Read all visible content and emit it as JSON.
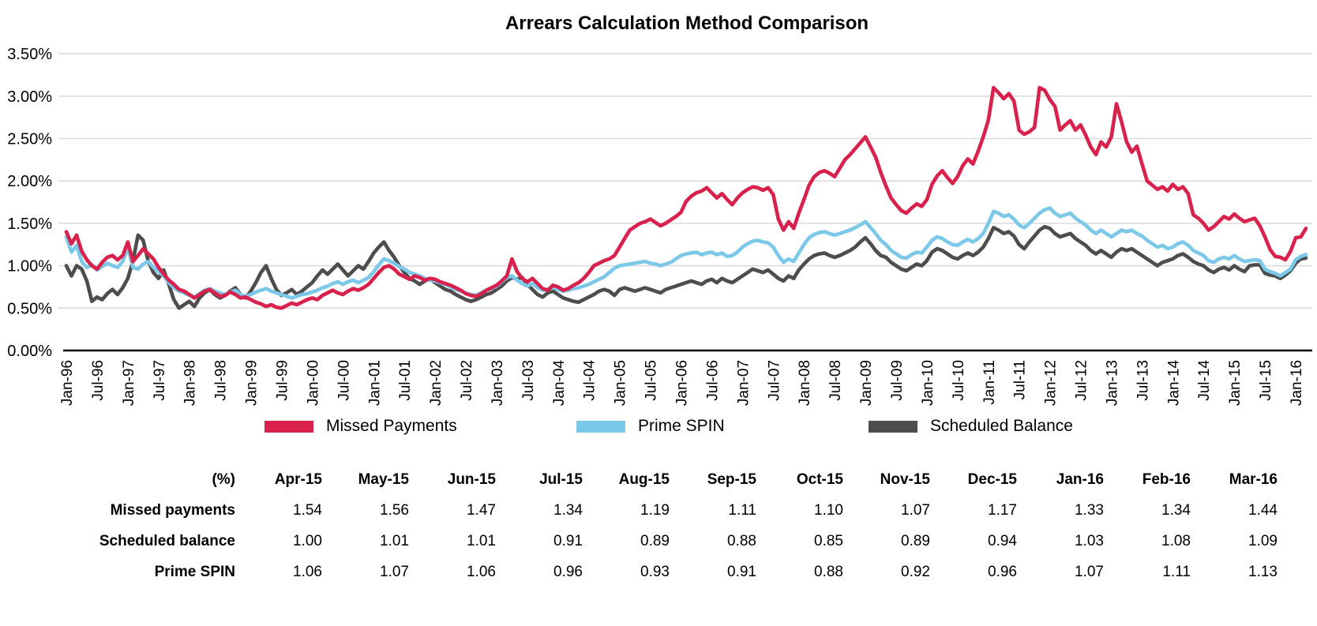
{
  "title": "Arrears Calculation Method Comparison",
  "colors": {
    "missed_payments": "#D8214C",
    "prime_spin": "#7CC8E9",
    "scheduled_balance": "#4D4D4D",
    "gridline": "#D9D9D9",
    "axis_line": "#000000"
  },
  "chart_data": {
    "type": "line",
    "title": "Arrears Calculation Method Comparison",
    "x_start": "Jan-96",
    "x_end": "Mar-16",
    "frequency": "monthly",
    "grid": "horizontal",
    "legend_position": "bottom",
    "ylim": [
      0,
      3.5
    ],
    "y_tick_labels": [
      "0.00%",
      "0.50%",
      "1.00%",
      "1.50%",
      "2.00%",
      "2.50%",
      "3.00%",
      "3.50%"
    ],
    "y_tick_values": [
      0,
      0.5,
      1.0,
      1.5,
      2.0,
      2.5,
      3.0,
      3.5
    ],
    "x_tick_labels": [
      "Jan-96",
      "Jul-96",
      "Jan-97",
      "Jul-97",
      "Jan-98",
      "Jul-98",
      "Jan-99",
      "Jul-99",
      "Jan-00",
      "Jul-00",
      "Jan-01",
      "Jul-01",
      "Jan-02",
      "Jul-02",
      "Jan-03",
      "Jul-03",
      "Jan-04",
      "Jul-04",
      "Jan-05",
      "Jul-05",
      "Jan-06",
      "Jul-06",
      "Jan-07",
      "Jul-07",
      "Jan-08",
      "Jul-08",
      "Jan-09",
      "Jul-09",
      "Jan-10",
      "Jul-10",
      "Jan-11",
      "Jul-11",
      "Jan-12",
      "Jul-12",
      "Jan-13",
      "Jul-13",
      "Jan-14",
      "Jul-14",
      "Jan-15",
      "Jul-15",
      "Jan-16"
    ],
    "x_tick_month_indices": [
      0,
      6,
      12,
      18,
      24,
      30,
      36,
      42,
      48,
      54,
      60,
      66,
      72,
      78,
      84,
      90,
      96,
      102,
      108,
      114,
      120,
      126,
      132,
      138,
      144,
      150,
      156,
      162,
      168,
      174,
      180,
      186,
      192,
      198,
      204,
      210,
      216,
      222,
      228,
      234,
      240
    ],
    "series": [
      {
        "name": "Missed Payments",
        "color": "#D8214C",
        "values": [
          1.4,
          1.26,
          1.36,
          1.17,
          1.07,
          1.0,
          0.96,
          1.04,
          1.1,
          1.12,
          1.07,
          1.12,
          1.28,
          1.05,
          1.12,
          1.2,
          1.14,
          1.08,
          0.98,
          0.9,
          0.83,
          0.78,
          0.72,
          0.7,
          0.66,
          0.62,
          0.66,
          0.7,
          0.72,
          0.68,
          0.64,
          0.65,
          0.69,
          0.66,
          0.62,
          0.63,
          0.6,
          0.57,
          0.55,
          0.52,
          0.54,
          0.51,
          0.5,
          0.53,
          0.56,
          0.54,
          0.57,
          0.6,
          0.62,
          0.6,
          0.65,
          0.68,
          0.71,
          0.68,
          0.66,
          0.7,
          0.73,
          0.71,
          0.74,
          0.78,
          0.85,
          0.92,
          0.98,
          1.0,
          0.96,
          0.9,
          0.87,
          0.84,
          0.88,
          0.86,
          0.83,
          0.85,
          0.84,
          0.81,
          0.79,
          0.77,
          0.74,
          0.71,
          0.67,
          0.65,
          0.64,
          0.67,
          0.71,
          0.74,
          0.77,
          0.82,
          0.88,
          1.08,
          0.93,
          0.85,
          0.81,
          0.85,
          0.79,
          0.73,
          0.71,
          0.77,
          0.75,
          0.71,
          0.73,
          0.77,
          0.8,
          0.85,
          0.92,
          1.0,
          1.03,
          1.06,
          1.08,
          1.12,
          1.22,
          1.32,
          1.42,
          1.46,
          1.5,
          1.52,
          1.55,
          1.51,
          1.47,
          1.5,
          1.54,
          1.58,
          1.63,
          1.76,
          1.82,
          1.86,
          1.88,
          1.92,
          1.86,
          1.8,
          1.85,
          1.78,
          1.72,
          1.8,
          1.86,
          1.9,
          1.93,
          1.92,
          1.89,
          1.92,
          1.84,
          1.55,
          1.42,
          1.52,
          1.44,
          1.62,
          1.78,
          1.95,
          2.05,
          2.1,
          2.12,
          2.09,
          2.05,
          2.15,
          2.25,
          2.31,
          2.38,
          2.45,
          2.52,
          2.4,
          2.28,
          2.1,
          1.94,
          1.8,
          1.72,
          1.65,
          1.62,
          1.68,
          1.73,
          1.7,
          1.78,
          1.96,
          2.06,
          2.12,
          2.04,
          1.97,
          2.05,
          2.18,
          2.26,
          2.2,
          2.35,
          2.52,
          2.72,
          3.1,
          3.04,
          2.97,
          3.03,
          2.94,
          2.6,
          2.55,
          2.58,
          2.63,
          3.1,
          3.07,
          2.96,
          2.88,
          2.6,
          2.66,
          2.71,
          2.6,
          2.66,
          2.54,
          2.4,
          2.31,
          2.46,
          2.4,
          2.52,
          2.91,
          2.7,
          2.46,
          2.34,
          2.41,
          2.2,
          2.0,
          1.95,
          1.9,
          1.93,
          1.88,
          1.96,
          1.9,
          1.93,
          1.85,
          1.6,
          1.56,
          1.5,
          1.42,
          1.46,
          1.52,
          1.58,
          1.55,
          1.61,
          1.56,
          1.52,
          1.54,
          1.56,
          1.47,
          1.34,
          1.19,
          1.11,
          1.1,
          1.07,
          1.17,
          1.33,
          1.34,
          1.44
        ]
      },
      {
        "name": "Prime SPIN",
        "color": "#7CC8E9",
        "values": [
          1.34,
          1.16,
          1.24,
          1.05,
          0.98,
          1.01,
          0.95,
          0.99,
          1.03,
          1.0,
          0.98,
          1.05,
          1.22,
          0.98,
          0.96,
          1.02,
          1.05,
          0.98,
          0.93,
          0.88,
          0.8,
          0.74,
          0.7,
          0.68,
          0.65,
          0.63,
          0.67,
          0.71,
          0.73,
          0.7,
          0.68,
          0.66,
          0.69,
          0.71,
          0.66,
          0.64,
          0.66,
          0.69,
          0.71,
          0.73,
          0.7,
          0.68,
          0.66,
          0.64,
          0.62,
          0.64,
          0.66,
          0.67,
          0.69,
          0.71,
          0.74,
          0.76,
          0.79,
          0.81,
          0.78,
          0.81,
          0.83,
          0.8,
          0.83,
          0.86,
          0.93,
          1.01,
          1.08,
          1.06,
          1.03,
          0.99,
          0.96,
          0.92,
          0.9,
          0.88,
          0.85,
          0.83,
          0.82,
          0.8,
          0.78,
          0.75,
          0.72,
          0.7,
          0.68,
          0.66,
          0.65,
          0.68,
          0.71,
          0.73,
          0.76,
          0.81,
          0.86,
          0.88,
          0.83,
          0.79,
          0.76,
          0.79,
          0.74,
          0.71,
          0.72,
          0.74,
          0.72,
          0.7,
          0.71,
          0.73,
          0.74,
          0.76,
          0.78,
          0.81,
          0.84,
          0.87,
          0.92,
          0.97,
          1.0,
          1.01,
          1.02,
          1.03,
          1.04,
          1.05,
          1.03,
          1.02,
          1.0,
          1.02,
          1.04,
          1.08,
          1.12,
          1.14,
          1.15,
          1.16,
          1.13,
          1.15,
          1.16,
          1.13,
          1.15,
          1.11,
          1.12,
          1.16,
          1.22,
          1.26,
          1.29,
          1.3,
          1.28,
          1.27,
          1.22,
          1.12,
          1.04,
          1.08,
          1.05,
          1.15,
          1.25,
          1.33,
          1.37,
          1.39,
          1.4,
          1.38,
          1.36,
          1.38,
          1.4,
          1.42,
          1.45,
          1.48,
          1.52,
          1.45,
          1.38,
          1.3,
          1.25,
          1.18,
          1.14,
          1.1,
          1.09,
          1.13,
          1.16,
          1.15,
          1.22,
          1.3,
          1.34,
          1.32,
          1.28,
          1.25,
          1.24,
          1.28,
          1.31,
          1.28,
          1.32,
          1.38,
          1.5,
          1.64,
          1.62,
          1.58,
          1.6,
          1.55,
          1.48,
          1.45,
          1.5,
          1.56,
          1.62,
          1.66,
          1.68,
          1.62,
          1.58,
          1.6,
          1.62,
          1.56,
          1.52,
          1.48,
          1.42,
          1.38,
          1.42,
          1.38,
          1.34,
          1.38,
          1.42,
          1.4,
          1.42,
          1.38,
          1.35,
          1.3,
          1.26,
          1.22,
          1.24,
          1.2,
          1.22,
          1.26,
          1.28,
          1.24,
          1.18,
          1.15,
          1.12,
          1.06,
          1.04,
          1.08,
          1.1,
          1.08,
          1.12,
          1.08,
          1.05,
          1.06,
          1.07,
          1.06,
          0.96,
          0.93,
          0.91,
          0.88,
          0.92,
          0.96,
          1.07,
          1.11,
          1.13
        ]
      },
      {
        "name": "Scheduled Balance",
        "color": "#4D4D4D",
        "values": [
          1.0,
          0.88,
          1.0,
          0.96,
          0.82,
          0.58,
          0.63,
          0.6,
          0.67,
          0.72,
          0.66,
          0.74,
          0.85,
          1.05,
          1.36,
          1.3,
          1.05,
          0.92,
          0.85,
          0.95,
          0.78,
          0.6,
          0.5,
          0.54,
          0.58,
          0.52,
          0.62,
          0.68,
          0.72,
          0.66,
          0.62,
          0.65,
          0.7,
          0.74,
          0.66,
          0.62,
          0.7,
          0.8,
          0.92,
          1.0,
          0.85,
          0.72,
          0.65,
          0.68,
          0.72,
          0.66,
          0.7,
          0.75,
          0.8,
          0.88,
          0.95,
          0.9,
          0.96,
          1.02,
          0.95,
          0.88,
          0.94,
          1.0,
          0.96,
          1.05,
          1.15,
          1.22,
          1.28,
          1.18,
          1.1,
          1.0,
          0.92,
          0.85,
          0.82,
          0.78,
          0.82,
          0.85,
          0.8,
          0.76,
          0.72,
          0.7,
          0.66,
          0.63,
          0.6,
          0.58,
          0.6,
          0.63,
          0.66,
          0.68,
          0.72,
          0.76,
          0.82,
          0.86,
          0.84,
          0.86,
          0.78,
          0.72,
          0.66,
          0.63,
          0.68,
          0.7,
          0.66,
          0.62,
          0.6,
          0.58,
          0.57,
          0.6,
          0.63,
          0.66,
          0.7,
          0.72,
          0.7,
          0.65,
          0.72,
          0.74,
          0.72,
          0.7,
          0.72,
          0.74,
          0.72,
          0.7,
          0.68,
          0.72,
          0.74,
          0.76,
          0.78,
          0.8,
          0.82,
          0.8,
          0.78,
          0.82,
          0.84,
          0.8,
          0.85,
          0.82,
          0.8,
          0.84,
          0.88,
          0.92,
          0.96,
          0.94,
          0.92,
          0.95,
          0.9,
          0.85,
          0.82,
          0.88,
          0.85,
          0.95,
          1.02,
          1.08,
          1.12,
          1.14,
          1.15,
          1.12,
          1.1,
          1.12,
          1.15,
          1.18,
          1.22,
          1.28,
          1.33,
          1.26,
          1.18,
          1.12,
          1.1,
          1.04,
          1.0,
          0.96,
          0.94,
          0.98,
          1.02,
          1.0,
          1.06,
          1.16,
          1.2,
          1.18,
          1.14,
          1.1,
          1.08,
          1.12,
          1.15,
          1.12,
          1.16,
          1.22,
          1.32,
          1.45,
          1.42,
          1.38,
          1.4,
          1.35,
          1.25,
          1.2,
          1.28,
          1.35,
          1.42,
          1.46,
          1.44,
          1.38,
          1.34,
          1.36,
          1.38,
          1.32,
          1.28,
          1.24,
          1.18,
          1.14,
          1.18,
          1.14,
          1.1,
          1.16,
          1.2,
          1.18,
          1.2,
          1.16,
          1.12,
          1.08,
          1.04,
          1.0,
          1.04,
          1.06,
          1.08,
          1.12,
          1.14,
          1.1,
          1.05,
          1.02,
          1.0,
          0.95,
          0.92,
          0.96,
          0.98,
          0.95,
          1.0,
          0.96,
          0.93,
          1.0,
          1.01,
          1.01,
          0.91,
          0.89,
          0.88,
          0.85,
          0.89,
          0.94,
          1.03,
          1.08,
          1.09
        ]
      }
    ]
  },
  "legend": {
    "entries": [
      {
        "label": "Missed Payments",
        "color": "#D8214C"
      },
      {
        "label": "Prime SPIN",
        "color": "#7CC8E9"
      },
      {
        "label": "Scheduled Balance",
        "color": "#4D4D4D"
      }
    ]
  },
  "table": {
    "unit_header": "(%)",
    "columns": [
      "Apr-15",
      "May-15",
      "Jun-15",
      "Jul-15",
      "Aug-15",
      "Sep-15",
      "Oct-15",
      "Nov-15",
      "Dec-15",
      "Jan-16",
      "Feb-16",
      "Mar-16"
    ],
    "rows": [
      {
        "label": "Missed payments",
        "values": [
          1.54,
          1.56,
          1.47,
          1.34,
          1.19,
          1.11,
          1.1,
          1.07,
          1.17,
          1.33,
          1.34,
          1.44
        ]
      },
      {
        "label": "Scheduled balance",
        "values": [
          1.0,
          1.01,
          1.01,
          0.91,
          0.89,
          0.88,
          0.85,
          0.89,
          0.94,
          1.03,
          1.08,
          1.09
        ]
      },
      {
        "label": "Prime SPIN",
        "values": [
          1.06,
          1.07,
          1.06,
          0.96,
          0.93,
          0.91,
          0.88,
          0.92,
          0.96,
          1.07,
          1.11,
          1.13
        ]
      }
    ]
  }
}
